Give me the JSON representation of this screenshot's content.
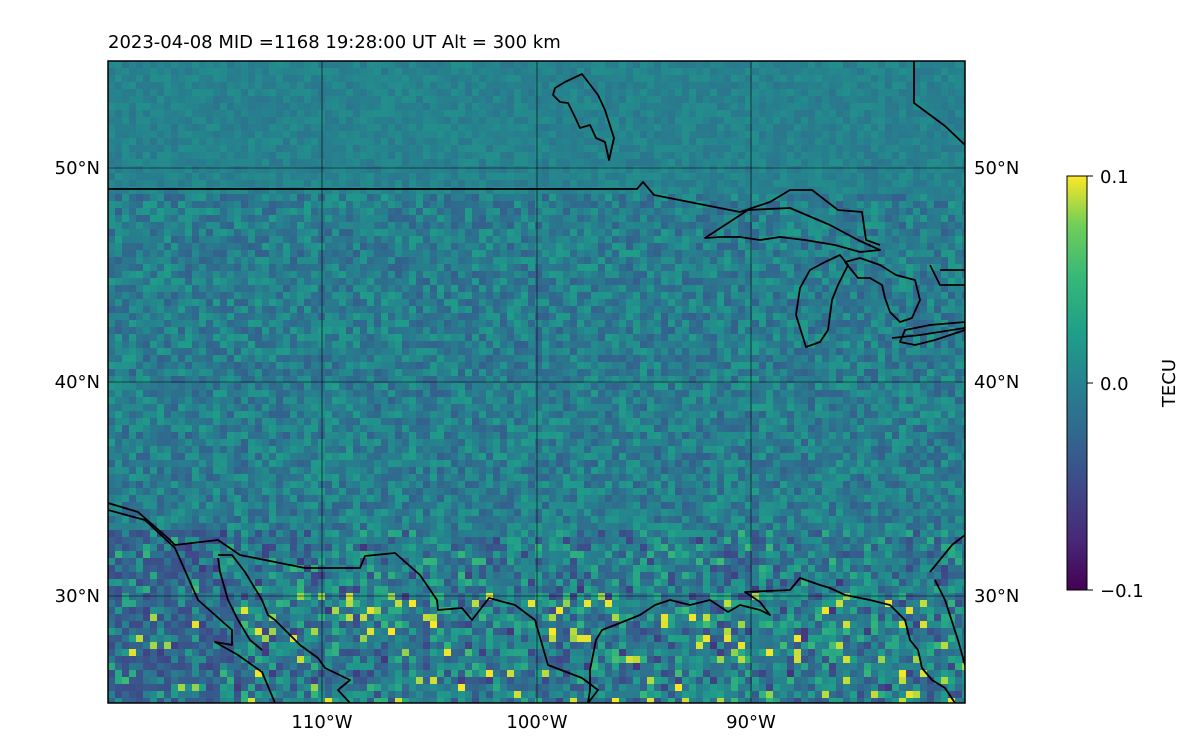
{
  "title": "2023-04-08  MID =1168    19:28:00  UT  Alt = 300 km",
  "map": {
    "lon_range": [
      -120,
      -80
    ],
    "lat_range": [
      25,
      55
    ],
    "lon_ticks": [
      {
        "value": -110,
        "label": "110°W"
      },
      {
        "value": -100,
        "label": "100°W"
      },
      {
        "value": -90,
        "label": "90°W"
      }
    ],
    "lat_ticks": [
      {
        "value": 30,
        "label": "30°N"
      },
      {
        "value": 40,
        "label": "40°N"
      },
      {
        "value": 50,
        "label": "50°N"
      }
    ],
    "gridlines": true,
    "field": "TEC perturbation",
    "features": [
      "US-Canada border",
      "Great Lakes",
      "Gulf of Mexico coastline",
      "Gulf of California",
      "Baja California",
      "Hudson Bay shore"
    ]
  },
  "colorbar": {
    "label": "TECU",
    "colormap": "viridis",
    "min": -0.1,
    "max": 0.1,
    "ticks": [
      {
        "value": 0.1,
        "label": "0.1"
      },
      {
        "value": 0.0,
        "label": "0.0"
      },
      {
        "value": -0.1,
        "label": "−0.1"
      }
    ]
  },
  "colors": {
    "background_map": "#2a8a8c",
    "coastline": "#000000"
  }
}
